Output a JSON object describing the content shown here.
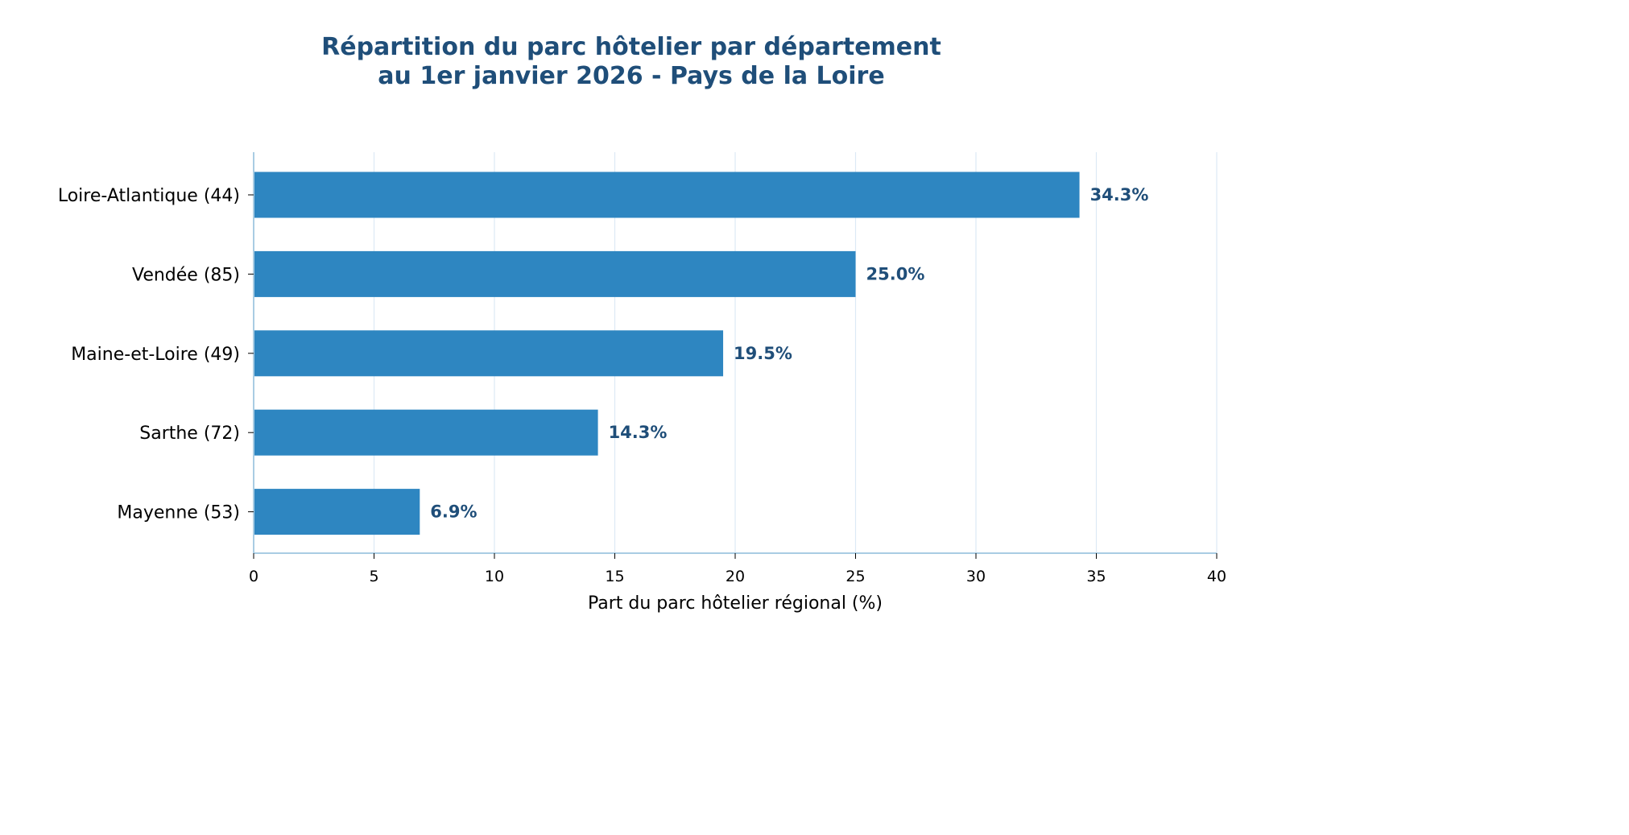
{
  "chart_data": {
    "type": "bar",
    "orientation": "horizontal",
    "title_lines": [
      "Répartition du parc hôtelier par département",
      "au 1er janvier 2026 - Pays de la Loire"
    ],
    "categories": [
      "Loire-Atlantique (44)",
      "Vendée (85)",
      "Maine-et-Loire (49)",
      "Sarthe (72)",
      "Mayenne (53)"
    ],
    "values": [
      34.3,
      25.0,
      19.5,
      14.3,
      6.9
    ],
    "value_labels": [
      "34.3%",
      "25.0%",
      "19.5%",
      "14.3%",
      "6.9%"
    ],
    "xlabel": "Part du parc hôtelier régional (%)",
    "ylabel": "",
    "xlim": [
      0,
      40
    ],
    "xticks": [
      0,
      5,
      10,
      15,
      20,
      25,
      30,
      35,
      40
    ],
    "grid": "vertical",
    "bar_color": "#2e86c1",
    "label_color": "#1f4e79",
    "grid_color": "#dce9f5",
    "axis_color": "#a9cce3"
  }
}
